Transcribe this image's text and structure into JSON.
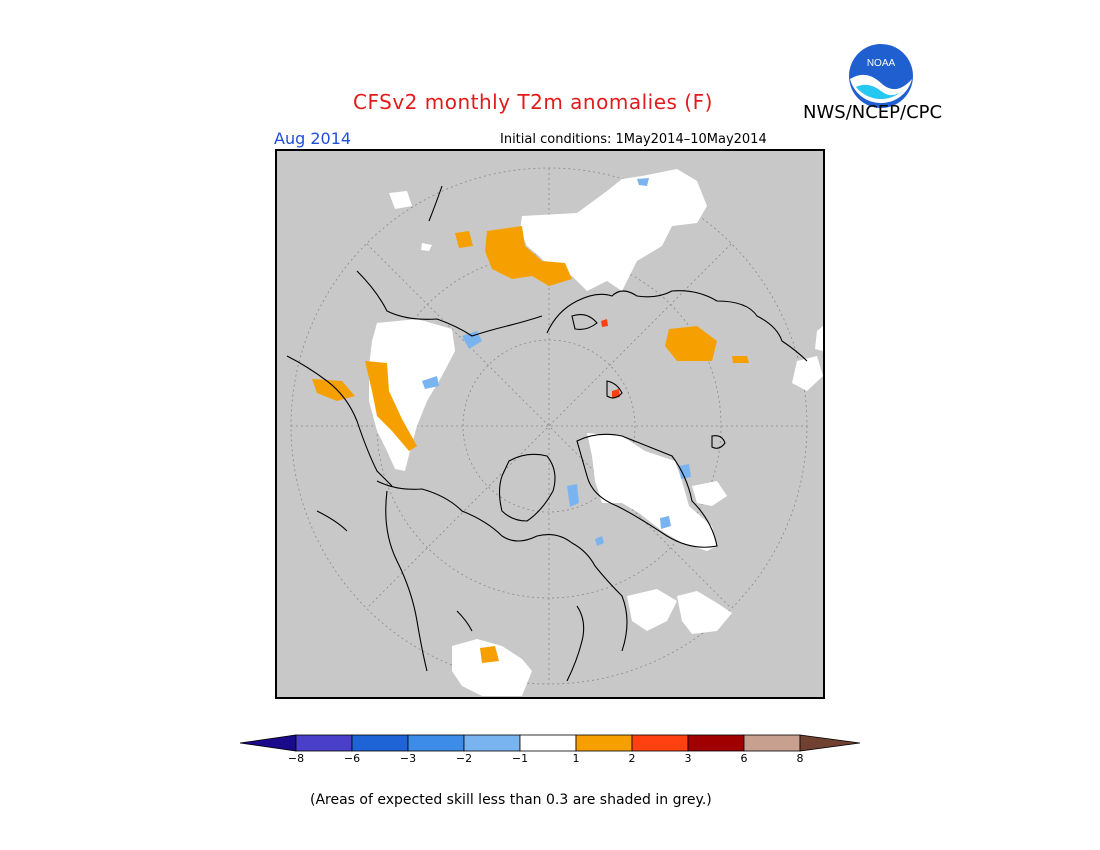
{
  "title": "CFSv2 monthly T2m anomalies (F)",
  "agency": "NWS/NCEP/CPC",
  "logo_text": "NOAA",
  "valid_month": "Aug 2014",
  "initial_conditions": "Initial conditions: 1May2014–10May2014",
  "footnote": "(Areas of expected skill less than 0.3 are shaded in grey.)",
  "legend": {
    "ticks": [
      "−8",
      "−6",
      "−3",
      "−2",
      "−1",
      "1",
      "2",
      "3",
      "6",
      "8"
    ],
    "colors": [
      "#1a0a8c",
      "#4a3fc8",
      "#1f64d6",
      "#3d8ce8",
      "#7ab4f0",
      "#ffffff",
      "#f5a000",
      "#ff4010",
      "#a00000",
      "#c8a090",
      "#704030"
    ]
  },
  "map_colors": {
    "low_skill_grey": "#c8c8c8",
    "near_normal": "#ffffff",
    "warm_1_2": "#f5a000",
    "warm_2_3": "#ff4010",
    "cool_1_2": "#7ab4f0"
  }
}
